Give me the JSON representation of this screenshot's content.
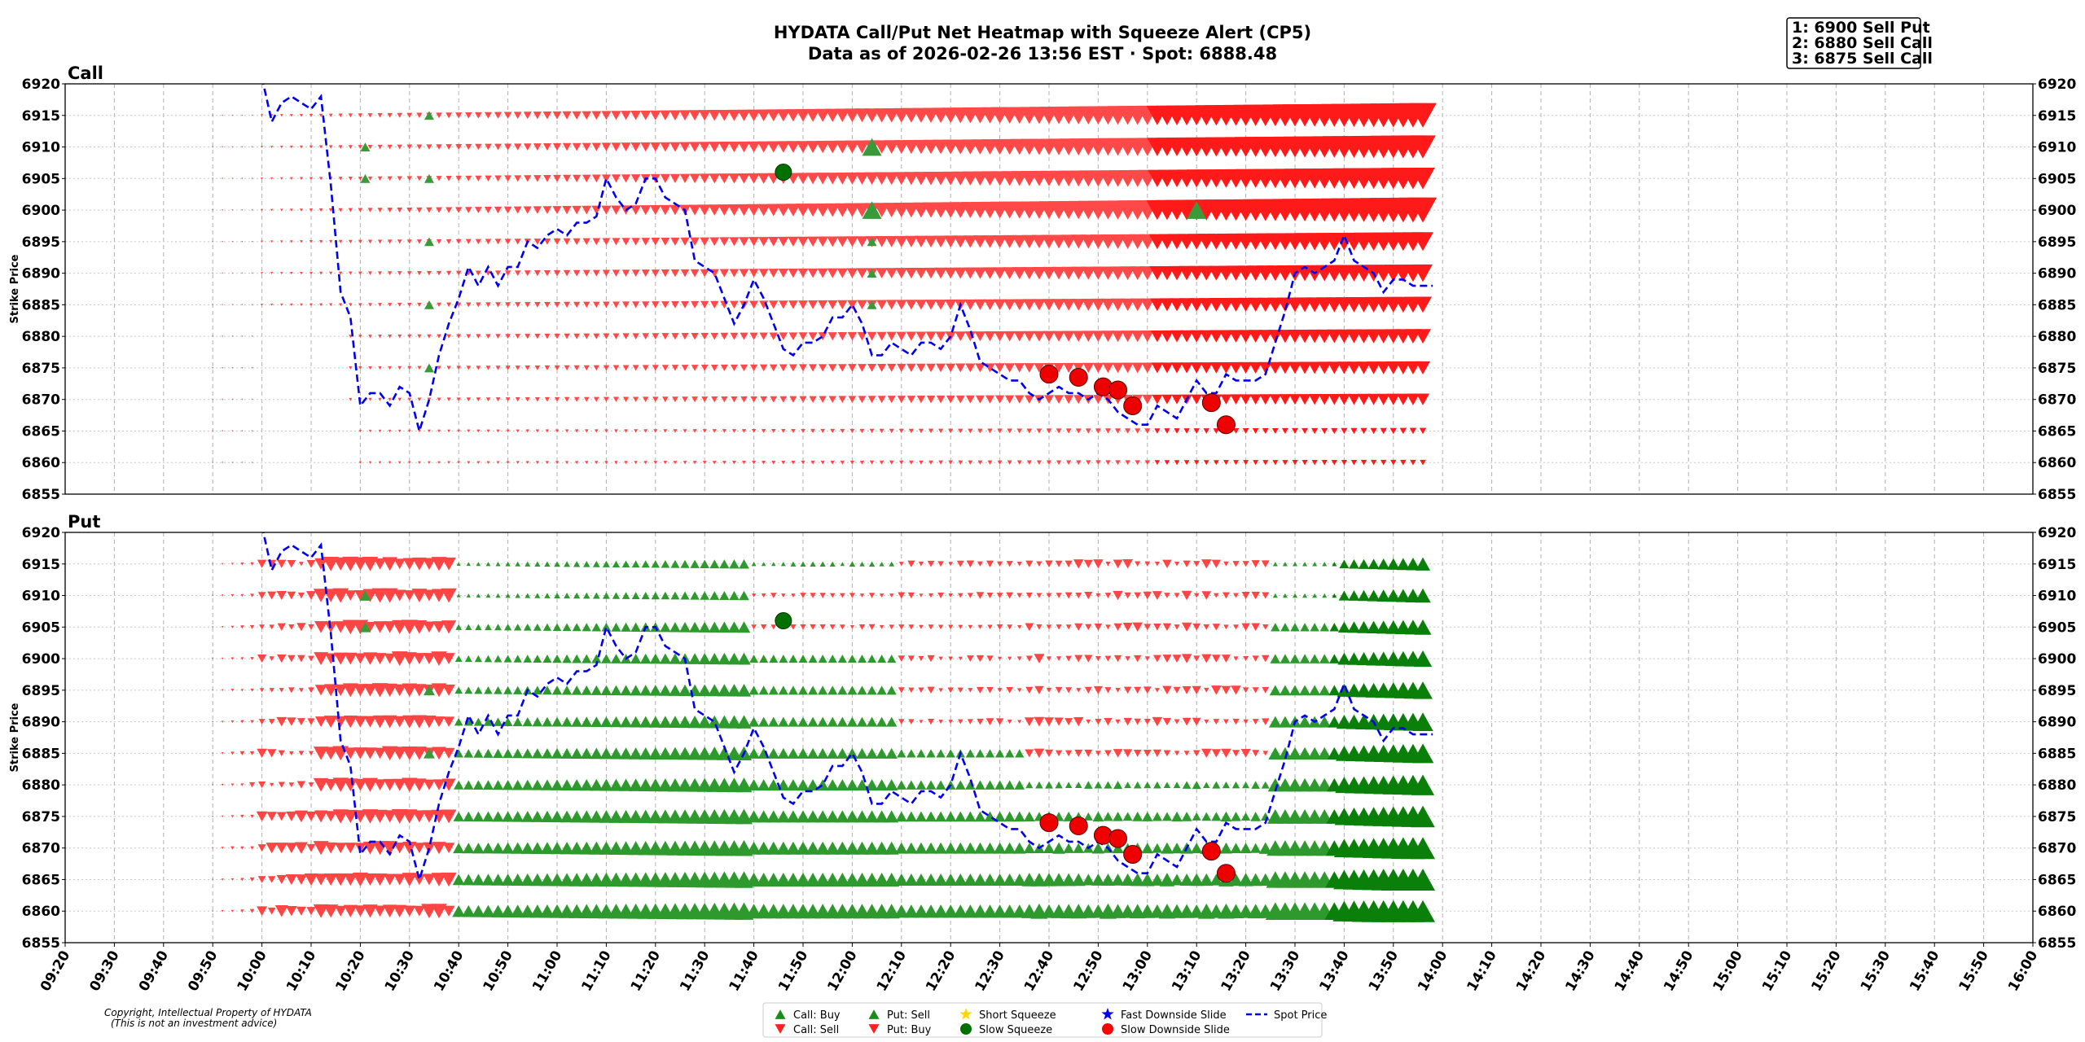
{
  "chart_data": {
    "type": "heatmap",
    "title": "HYDATA Call/Put Net Heatmap with Squeeze Alert (CP5)",
    "subtitle": "Data as of 2026-02-26 13:56 EST · Spot: 6888.48",
    "ylabel": "Strike Price",
    "ylim": [
      6855,
      6920
    ],
    "yticks": [
      6855,
      6860,
      6865,
      6870,
      6875,
      6880,
      6885,
      6890,
      6895,
      6900,
      6905,
      6910,
      6915,
      6920
    ],
    "xticks": [
      "09:20",
      "09:30",
      "09:40",
      "09:50",
      "10:00",
      "10:10",
      "10:20",
      "10:30",
      "10:40",
      "10:50",
      "11:00",
      "11:10",
      "11:20",
      "11:30",
      "11:40",
      "11:50",
      "12:00",
      "12:10",
      "12:20",
      "12:30",
      "12:40",
      "12:50",
      "13:00",
      "13:10",
      "13:20",
      "13:30",
      "13:40",
      "13:50",
      "14:00",
      "14:10",
      "14:20",
      "14:30",
      "14:40",
      "14:50",
      "15:00",
      "15:10",
      "15:20",
      "15:30",
      "15:40",
      "15:50",
      "16:00"
    ],
    "xrange_minutes": [
      560,
      960
    ],
    "panels": [
      {
        "name": "Call"
      },
      {
        "name": "Put"
      }
    ],
    "legend": [
      {
        "label": "Call: Buy",
        "marker": "triangle-up",
        "color": "#1a8c1a"
      },
      {
        "label": "Call: Sell",
        "marker": "triangle-down",
        "color": "#ff2020"
      },
      {
        "label": "Put: Sell",
        "marker": "triangle-up",
        "color": "#1a8c1a"
      },
      {
        "label": "Put: Buy",
        "marker": "triangle-down",
        "color": "#ff2020"
      },
      {
        "label": "Short Squeeze",
        "marker": "star",
        "color": "#ffd700"
      },
      {
        "label": "Slow Squeeze",
        "marker": "circle",
        "color": "#007000"
      },
      {
        "label": "Fast Downside Slide",
        "marker": "star",
        "color": "#0000ee"
      },
      {
        "label": "Slow Downside Slide",
        "marker": "circle",
        "color": "#ff0000"
      },
      {
        "label": "Spot Price",
        "marker": "dashed-line",
        "color": "#0000ee"
      }
    ],
    "alerts_box": [
      "1: 6900 Sell Put",
      "2: 6880 Sell Call",
      "3: 6875 Sell Call"
    ],
    "copyright": [
      "Copyright, Intellectual Property of HYDATA",
      "(This is not an investment advice)"
    ],
    "spot_series": {
      "times": [
        600,
        602,
        604,
        606,
        608,
        610,
        612,
        614,
        616,
        618,
        620,
        622,
        624,
        626,
        628,
        630,
        632,
        634,
        636,
        638,
        640,
        642,
        644,
        646,
        648,
        650,
        652,
        654,
        656,
        658,
        660,
        662,
        664,
        666,
        668,
        670,
        672,
        674,
        676,
        678,
        680,
        682,
        684,
        686,
        688,
        690,
        692,
        694,
        696,
        698,
        700,
        702,
        704,
        706,
        708,
        710,
        712,
        714,
        716,
        718,
        720,
        722,
        724,
        726,
        728,
        730,
        732,
        734,
        736,
        738,
        740,
        742,
        744,
        746,
        748,
        750,
        752,
        754,
        756,
        758,
        760,
        762,
        764,
        766,
        768,
        770,
        772,
        774,
        776,
        778,
        780,
        782,
        784,
        786,
        788,
        790,
        792,
        794,
        796,
        798,
        800,
        802,
        804,
        806,
        808,
        810,
        812,
        814,
        816,
        818,
        820,
        822,
        824,
        826,
        828,
        830,
        832,
        834,
        836,
        838
      ],
      "values": [
        6921,
        6914,
        6917,
        6918,
        6917,
        6916,
        6918,
        6904,
        6887,
        6883,
        6869,
        6871,
        6871,
        6869,
        6872,
        6871,
        6865,
        6870,
        6877,
        6882,
        6886,
        6891,
        6888,
        6891,
        6888,
        6891,
        6891,
        6895,
        6894,
        6896,
        6897,
        6896,
        6898,
        6898,
        6899,
        6905,
        6902,
        6900,
        6901,
        6905,
        6905,
        6902,
        6901,
        6900,
        6892,
        6891,
        6890,
        6886,
        6882,
        6885,
        6889,
        6886,
        6882,
        6878,
        6877,
        6879,
        6879,
        6880,
        6883,
        6883,
        6885,
        6882,
        6877,
        6877,
        6879,
        6878,
        6877,
        6879,
        6879,
        6878,
        6880,
        6885,
        6881,
        6876,
        6875,
        6874,
        6873,
        6873,
        6871,
        6870,
        6871,
        6872,
        6871,
        6871,
        6870,
        6871,
        6870,
        6868,
        6867,
        6866,
        6866,
        6869,
        6868,
        6867,
        6870,
        6873,
        6871,
        6871,
        6874,
        6873,
        6873,
        6873,
        6874,
        6879,
        6884,
        6890,
        6891,
        6890,
        6891,
        6892,
        6896,
        6892,
        6891,
        6890,
        6887,
        6889,
        6889,
        6888,
        6888,
        6888
      ]
    },
    "slow_squeeze_alerts": [
      {
        "panel": "Call",
        "time": 706,
        "strike": 6906
      },
      {
        "panel": "Put",
        "time": 706,
        "strike": 6906
      }
    ],
    "slow_downside_alerts": [
      {
        "time": 760,
        "strike": 6874
      },
      {
        "time": 766,
        "strike": 6873.5
      },
      {
        "time": 771,
        "strike": 6872
      },
      {
        "time": 774,
        "strike": 6871.5
      },
      {
        "time": 777,
        "strike": 6869
      },
      {
        "time": 793,
        "strike": 6869.5
      },
      {
        "time": 796,
        "strike": 6866
      }
    ],
    "call_buy_markers": [
      {
        "time": 634,
        "strike": 6915
      },
      {
        "time": 621,
        "strike": 6910
      },
      {
        "time": 621,
        "strike": 6905
      },
      {
        "time": 634,
        "strike": 6905
      },
      {
        "time": 634,
        "strike": 6895
      },
      {
        "time": 634,
        "strike": 6885
      },
      {
        "time": 634,
        "strike": 6875
      },
      {
        "time": 724,
        "strike": 6910
      },
      {
        "time": 724,
        "strike": 6900
      },
      {
        "time": 724,
        "strike": 6895
      },
      {
        "time": 724,
        "strike": 6890
      },
      {
        "time": 724,
        "strike": 6885
      },
      {
        "time": 790,
        "strike": 6900
      }
    ],
    "strikes": [
      6860,
      6865,
      6870,
      6875,
      6880,
      6885,
      6890,
      6895,
      6900,
      6905,
      6910,
      6915
    ],
    "time_start": 590,
    "time_end": 836
  }
}
